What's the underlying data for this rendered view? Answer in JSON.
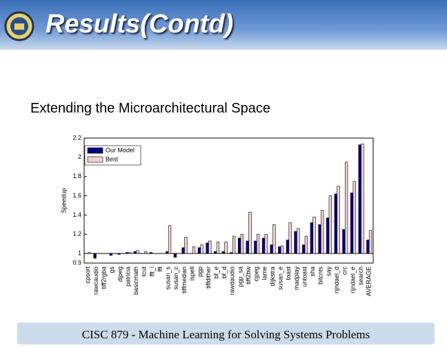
{
  "slide": {
    "title": "Results(Contd)",
    "subtitle": "Extending the Microarchitectural Space",
    "footer": "CISC 879 - Machine Learning for Solving Systems Problems"
  },
  "chart_data": {
    "type": "bar",
    "y_label": "Speedup",
    "categories": [
      "cpsort",
      "rawcaudio",
      "tiff2rgba",
      "gs",
      "djpeg",
      "patricia",
      "basicmath",
      "tcut",
      "fft_i",
      "fft",
      "susan_s",
      "susan_c",
      "tiffmedian",
      "ispell",
      "pgp",
      "tiffdither",
      "bf_e",
      "bf_d",
      "rawdaudio",
      "pgp_sa",
      "tiff2bw",
      "cjpeg",
      "lame",
      "dijkstra",
      "susan_e",
      "toast",
      "madplay",
      "untoast",
      "sha",
      "bitcnts",
      "say",
      "rijndael_d",
      "crc",
      "rijndael_e",
      "search",
      "AVERAGE"
    ],
    "series": [
      {
        "name": "Our Model",
        "color": "#000080",
        "values": [
          1.0,
          0.95,
          1.0,
          0.98,
          0.99,
          1.01,
          1.02,
          1.0,
          1.01,
          1.0,
          1.02,
          0.96,
          1.06,
          1.0,
          1.06,
          1.11,
          1.02,
          1.02,
          1.01,
          1.16,
          1.13,
          1.13,
          1.16,
          1.09,
          1.07,
          1.14,
          1.23,
          1.09,
          1.32,
          1.3,
          1.37,
          1.62,
          1.25,
          1.63,
          2.13,
          1.14
        ]
      },
      {
        "name": "Best",
        "color": "#f4d0d0",
        "values": [
          1.01,
          1.0,
          1.0,
          1.0,
          1.0,
          1.01,
          1.03,
          1.02,
          1.0,
          1.0,
          1.29,
          1.0,
          1.17,
          1.07,
          1.09,
          1.13,
          1.12,
          1.12,
          1.18,
          1.2,
          1.43,
          1.2,
          1.2,
          1.3,
          1.08,
          1.32,
          1.26,
          1.18,
          1.38,
          1.45,
          1.6,
          1.7,
          1.95,
          1.75,
          2.14,
          1.24
        ]
      }
    ],
    "baseline": 1,
    "ylim": [
      0.9,
      2.2
    ],
    "yticks": [
      0.9,
      1,
      1.2,
      1.4,
      1.6,
      1.8,
      2,
      2.2
    ]
  }
}
